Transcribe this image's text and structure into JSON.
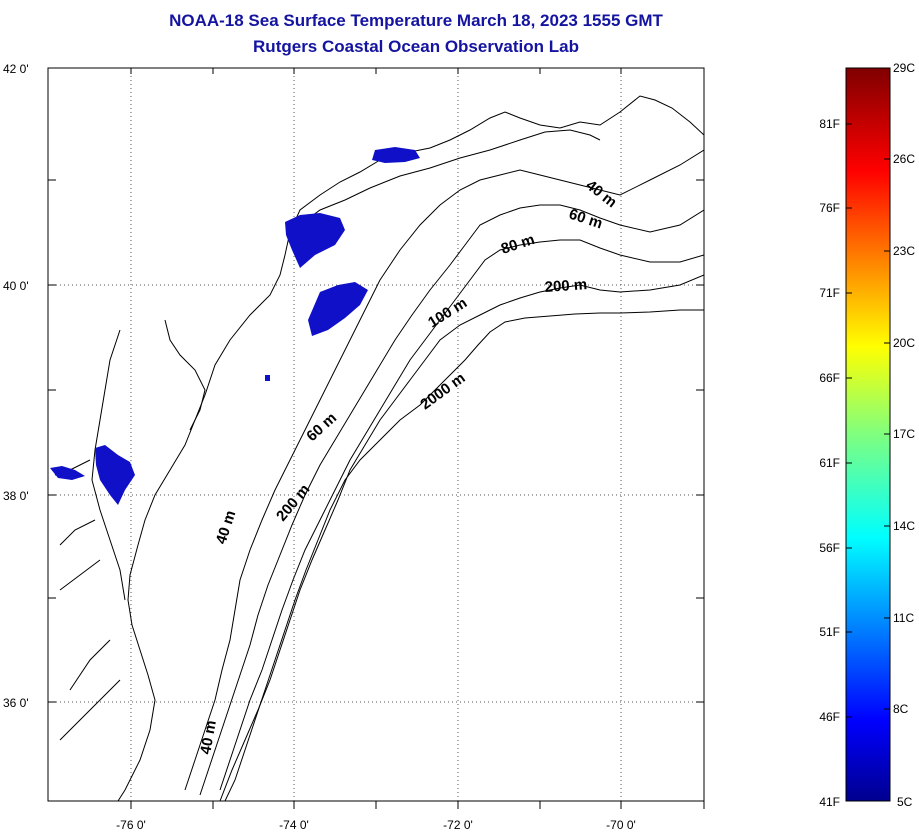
{
  "header": {
    "title_line1": "NOAA-18 Sea Surface Temperature March 18, 2023 1555 GMT",
    "title_line2": "Rutgers Coastal Ocean Observation Lab"
  },
  "map": {
    "lat_labels": [
      "42 0'",
      "40 0'",
      "38 0'",
      "36 0'"
    ],
    "lon_labels": [
      "-76 0'",
      "-74 0'",
      "-72 0'",
      "-70 0'"
    ],
    "isobath_labels": [
      "40 m",
      "60 m",
      "80 m",
      "200 m",
      "100 m",
      "2000 m",
      "60 m",
      "200 m",
      "40 m",
      "40 m"
    ],
    "sst_pixel_color": "#1010c8",
    "grid": "dotted"
  },
  "colorbar": {
    "celsius_labels": [
      "29C",
      "26C",
      "23C",
      "20C",
      "17C",
      "14C",
      "11C",
      "8C",
      "5C"
    ],
    "fahrenheit_labels": [
      "81F",
      "76F",
      "71F",
      "66F",
      "61F",
      "56F",
      "51F",
      "46F",
      "41F"
    ],
    "scale": "jet",
    "min_c": 5,
    "max_c": 29
  }
}
